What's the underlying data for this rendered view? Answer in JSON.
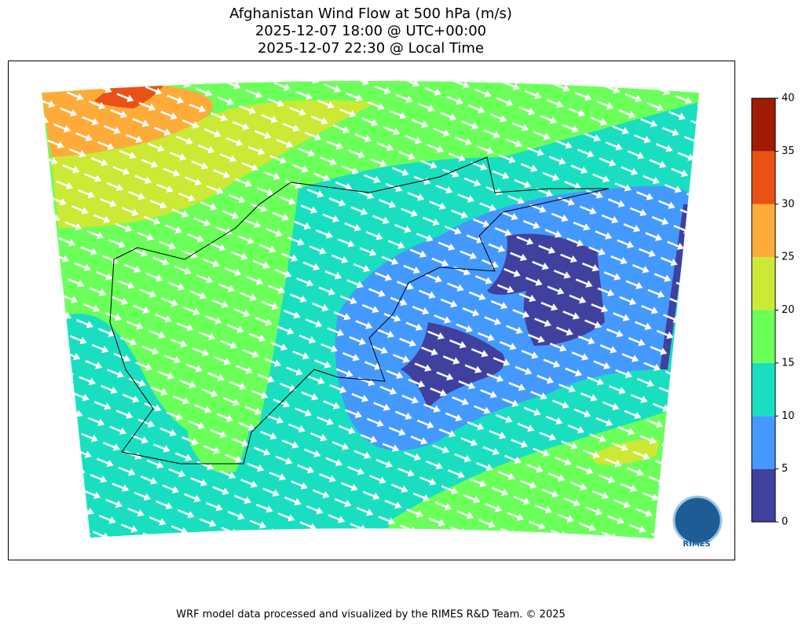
{
  "title": [
    "Afghanistan Wind Flow at 500 hPa (m/s)",
    "2025-12-07 18:00 @ UTC+00:00",
    "2025-12-07 22:30 @ Local Time"
  ],
  "colorbar": {
    "lim": [
      0,
      40
    ],
    "ticks": [
      0,
      5,
      10,
      15,
      20,
      25,
      30,
      35,
      40
    ],
    "colors": [
      "#40409f",
      "#4499ff",
      "#19dfc0",
      "#6bff5a",
      "#cbe935",
      "#ffab3a",
      "#e95115",
      "#a11a04"
    ]
  },
  "logo": "RIMES",
  "footer": "WRF model data processed and visualized by the RIMES R&D Team. © 2025"
}
